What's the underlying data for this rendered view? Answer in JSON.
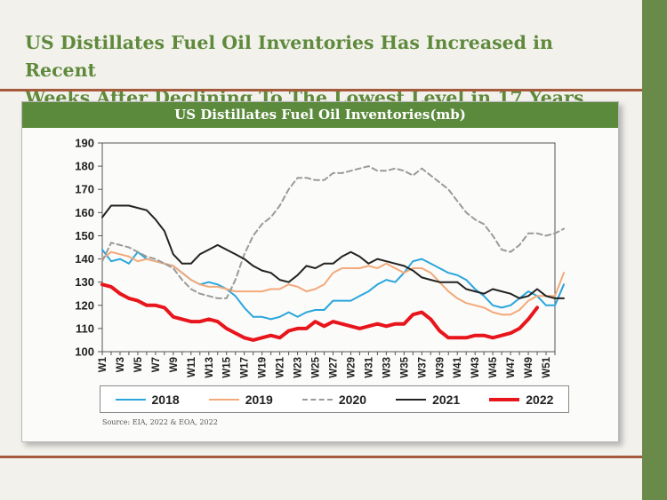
{
  "headline": {
    "line1": "US Distillates Fuel Oil Inventories Has Increased in Recent",
    "line2": "Weeks After Declining To The Lowest Level in 17 Years"
  },
  "source_note": "Source: EIA, 2022 & EOA, 2022",
  "colors": {
    "title_green": "#5f8a3c",
    "panel_header_green": "#5c8a3c",
    "side_bar_green": "#6a8a4a",
    "rule_brown": "#a65a3c"
  },
  "chart_data": {
    "type": "line",
    "title": "US Distillates Fuel Oil Inventories(mb)",
    "xlabel": "",
    "ylabel": "",
    "ylim": [
      100,
      190
    ],
    "y_ticks": [
      100,
      110,
      120,
      130,
      140,
      150,
      160,
      170,
      180,
      190
    ],
    "x_tick_labels": [
      "W1",
      "W3",
      "W5",
      "W7",
      "W9",
      "W11",
      "W13",
      "W15",
      "W17",
      "W19",
      "W21",
      "W23",
      "W25",
      "W27",
      "W29",
      "W31",
      "W33",
      "W35",
      "W37",
      "W39",
      "W41",
      "W43",
      "W45",
      "W47",
      "W49",
      "W51"
    ],
    "grid": false,
    "legend_position": "bottom",
    "weeks": 52,
    "series": [
      {
        "name": "2018",
        "color": "#2aa6dc",
        "dash": "solid",
        "width": 2,
        "values": [
          144,
          139,
          140,
          138,
          143,
          140,
          139,
          138,
          137,
          134,
          131,
          129,
          130,
          129,
          127,
          124,
          119,
          115,
          115,
          114,
          115,
          117,
          115,
          117,
          118,
          118,
          122,
          122,
          122,
          124,
          126,
          129,
          131,
          130,
          134,
          139,
          140,
          138,
          136,
          134,
          133,
          131,
          127,
          124,
          120,
          119,
          120,
          123,
          126,
          124,
          120,
          120,
          129
        ]
      },
      {
        "name": "2019",
        "color": "#f3a97a",
        "dash": "solid",
        "width": 2,
        "values": [
          140,
          143,
          142,
          141,
          139,
          140,
          139,
          138,
          137,
          134,
          131,
          129,
          128,
          128,
          127,
          126,
          126,
          126,
          126,
          127,
          127,
          129,
          128,
          126,
          127,
          129,
          134,
          136,
          136,
          136,
          137,
          136,
          138,
          136,
          134,
          136,
          136,
          134,
          130,
          126,
          123,
          121,
          120,
          119,
          117,
          116,
          116,
          118,
          122,
          124,
          124,
          124,
          134
        ]
      },
      {
        "name": "2020",
        "color": "#9a9a9a",
        "dash": "6 4",
        "width": 2,
        "values": [
          139,
          147,
          146,
          145,
          143,
          141,
          140,
          138,
          136,
          131,
          127,
          125,
          124,
          123,
          123,
          131,
          142,
          150,
          155,
          158,
          163,
          170,
          175,
          175,
          174,
          174,
          177,
          177,
          178,
          179,
          180,
          178,
          178,
          179,
          178,
          176,
          179,
          176,
          173,
          170,
          165,
          160,
          157,
          155,
          150,
          144,
          143,
          146,
          151,
          151,
          150,
          151,
          153
        ]
      },
      {
        "name": "2021",
        "color": "#222222",
        "dash": "solid",
        "width": 2,
        "values": [
          158,
          163,
          163,
          163,
          162,
          161,
          157,
          152,
          142,
          138,
          138,
          142,
          144,
          146,
          144,
          142,
          140,
          137,
          135,
          134,
          131,
          130,
          133,
          137,
          136,
          138,
          138,
          141,
          143,
          141,
          138,
          140,
          139,
          138,
          137,
          135,
          132,
          131,
          130,
          130,
          130,
          127,
          126,
          125,
          127,
          126,
          125,
          123,
          124,
          127,
          124,
          123,
          123
        ]
      },
      {
        "name": "2022",
        "color": "#e8151c",
        "dash": "solid",
        "width": 4,
        "values": [
          129,
          128,
          125,
          123,
          122,
          120,
          120,
          119,
          115,
          114,
          113,
          113,
          114,
          113,
          110,
          108,
          106,
          105,
          106,
          107,
          106,
          109,
          110,
          110,
          113,
          111,
          113,
          112,
          111,
          110,
          111,
          112,
          111,
          112,
          112,
          116,
          117,
          114,
          109,
          106,
          106,
          106,
          107,
          107,
          106,
          107,
          108,
          110,
          114,
          119
        ]
      }
    ]
  }
}
